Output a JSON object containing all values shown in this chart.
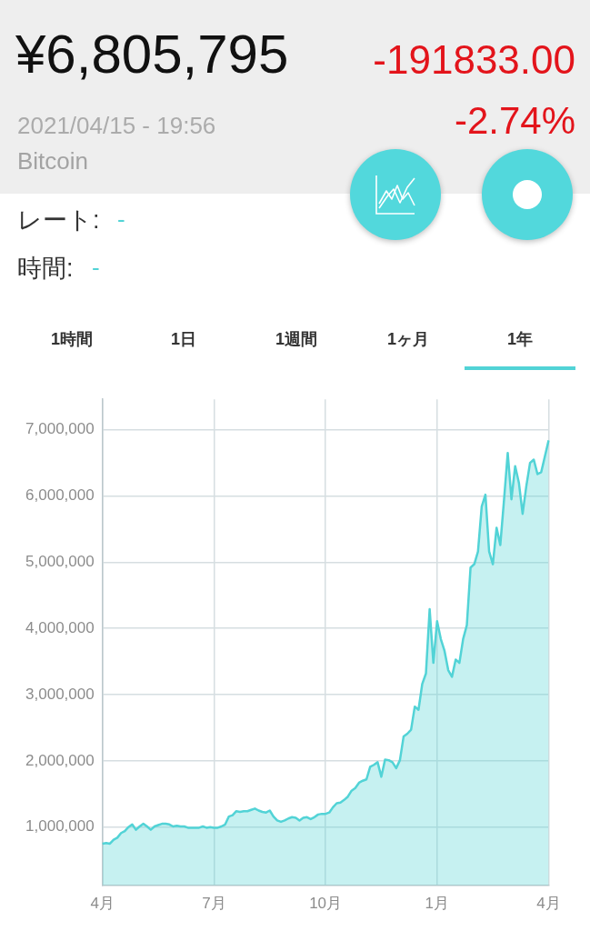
{
  "chart_data": {
    "type": "area",
    "title": "¥6,805,795",
    "subtitle": "2021/04/15 - 19:56",
    "annotations": [
      "-191833.00",
      "-2.74%",
      "Bitcoin",
      "レート:",
      "-",
      "時間:",
      "-",
      "1時間",
      "1日",
      "1週間",
      "1ヶ月",
      "1年"
    ],
    "categories": [
      "4月",
      null,
      null,
      null,
      null,
      null,
      null,
      null,
      null,
      null,
      null,
      null,
      null,
      null,
      null,
      null,
      null,
      null,
      null,
      null,
      null,
      null,
      null,
      null,
      null,
      null,
      null,
      null,
      null,
      null,
      "7月",
      null,
      null,
      null,
      null,
      null,
      null,
      null,
      null,
      null,
      null,
      null,
      null,
      null,
      null,
      null,
      null,
      null,
      null,
      null,
      null,
      null,
      null,
      null,
      null,
      null,
      null,
      null,
      null,
      null,
      "10月",
      null,
      null,
      null,
      null,
      null,
      null,
      null,
      null,
      null,
      null,
      null,
      null,
      null,
      null,
      null,
      null,
      null,
      null,
      null,
      null,
      null,
      null,
      null,
      null,
      null,
      null,
      null,
      null,
      null,
      "1月",
      null,
      null,
      null,
      null,
      null,
      null,
      null,
      null,
      null,
      null,
      null,
      null,
      null,
      null,
      null,
      null,
      null,
      null,
      null,
      null,
      null,
      null,
      null,
      null,
      null,
      null,
      null,
      null,
      null,
      "4月"
    ],
    "values": [
      750000,
      760000,
      750000,
      810000,
      840000,
      910000,
      940000,
      1000000,
      1040000,
      960000,
      1010000,
      1050000,
      1010000,
      960000,
      1010000,
      1030000,
      1050000,
      1050000,
      1040000,
      1010000,
      1020000,
      1010000,
      1010000,
      990000,
      990000,
      990000,
      990000,
      1010000,
      990000,
      1000000,
      990000,
      990000,
      1010000,
      1040000,
      1160000,
      1180000,
      1240000,
      1230000,
      1240000,
      1240000,
      1260000,
      1280000,
      1250000,
      1230000,
      1220000,
      1250000,
      1160000,
      1100000,
      1080000,
      1100000,
      1130000,
      1150000,
      1140000,
      1100000,
      1140000,
      1150000,
      1120000,
      1150000,
      1190000,
      1200000,
      1200000,
      1220000,
      1300000,
      1360000,
      1370000,
      1410000,
      1460000,
      1550000,
      1590000,
      1670000,
      1700000,
      1720000,
      1910000,
      1940000,
      1980000,
      1760000,
      2020000,
      2010000,
      1980000,
      1890000,
      2010000,
      2370000,
      2410000,
      2470000,
      2820000,
      2770000,
      3160000,
      3320000,
      4290000,
      3480000,
      4110000,
      3840000,
      3660000,
      3370000,
      3270000,
      3530000,
      3480000,
      3840000,
      4050000,
      4920000,
      4970000,
      5160000,
      5840000,
      6020000,
      5160000,
      4970000,
      5520000,
      5260000,
      5940000,
      6650000,
      5950000,
      6450000,
      6200000,
      5730000,
      6150000,
      6500000,
      6550000,
      6330000,
      6360000,
      6600000,
      6840000
    ],
    "color": "#52d3d6",
    "ylim": [
      120000,
      7460000
    ],
    "yticks": [
      {
        "value": 1000000,
        "label": "1,000,000"
      },
      {
        "value": 2000000,
        "label": "2,000,000"
      },
      {
        "value": 3000000,
        "label": "3,000,000"
      },
      {
        "value": 4000000,
        "label": "4,000,000"
      },
      {
        "value": 5000000,
        "label": "5,000,000"
      },
      {
        "value": 6000000,
        "label": "6,000,000"
      },
      {
        "value": 7000000,
        "label": "7,000,000"
      }
    ],
    "grid": true,
    "marker": "none"
  }
}
